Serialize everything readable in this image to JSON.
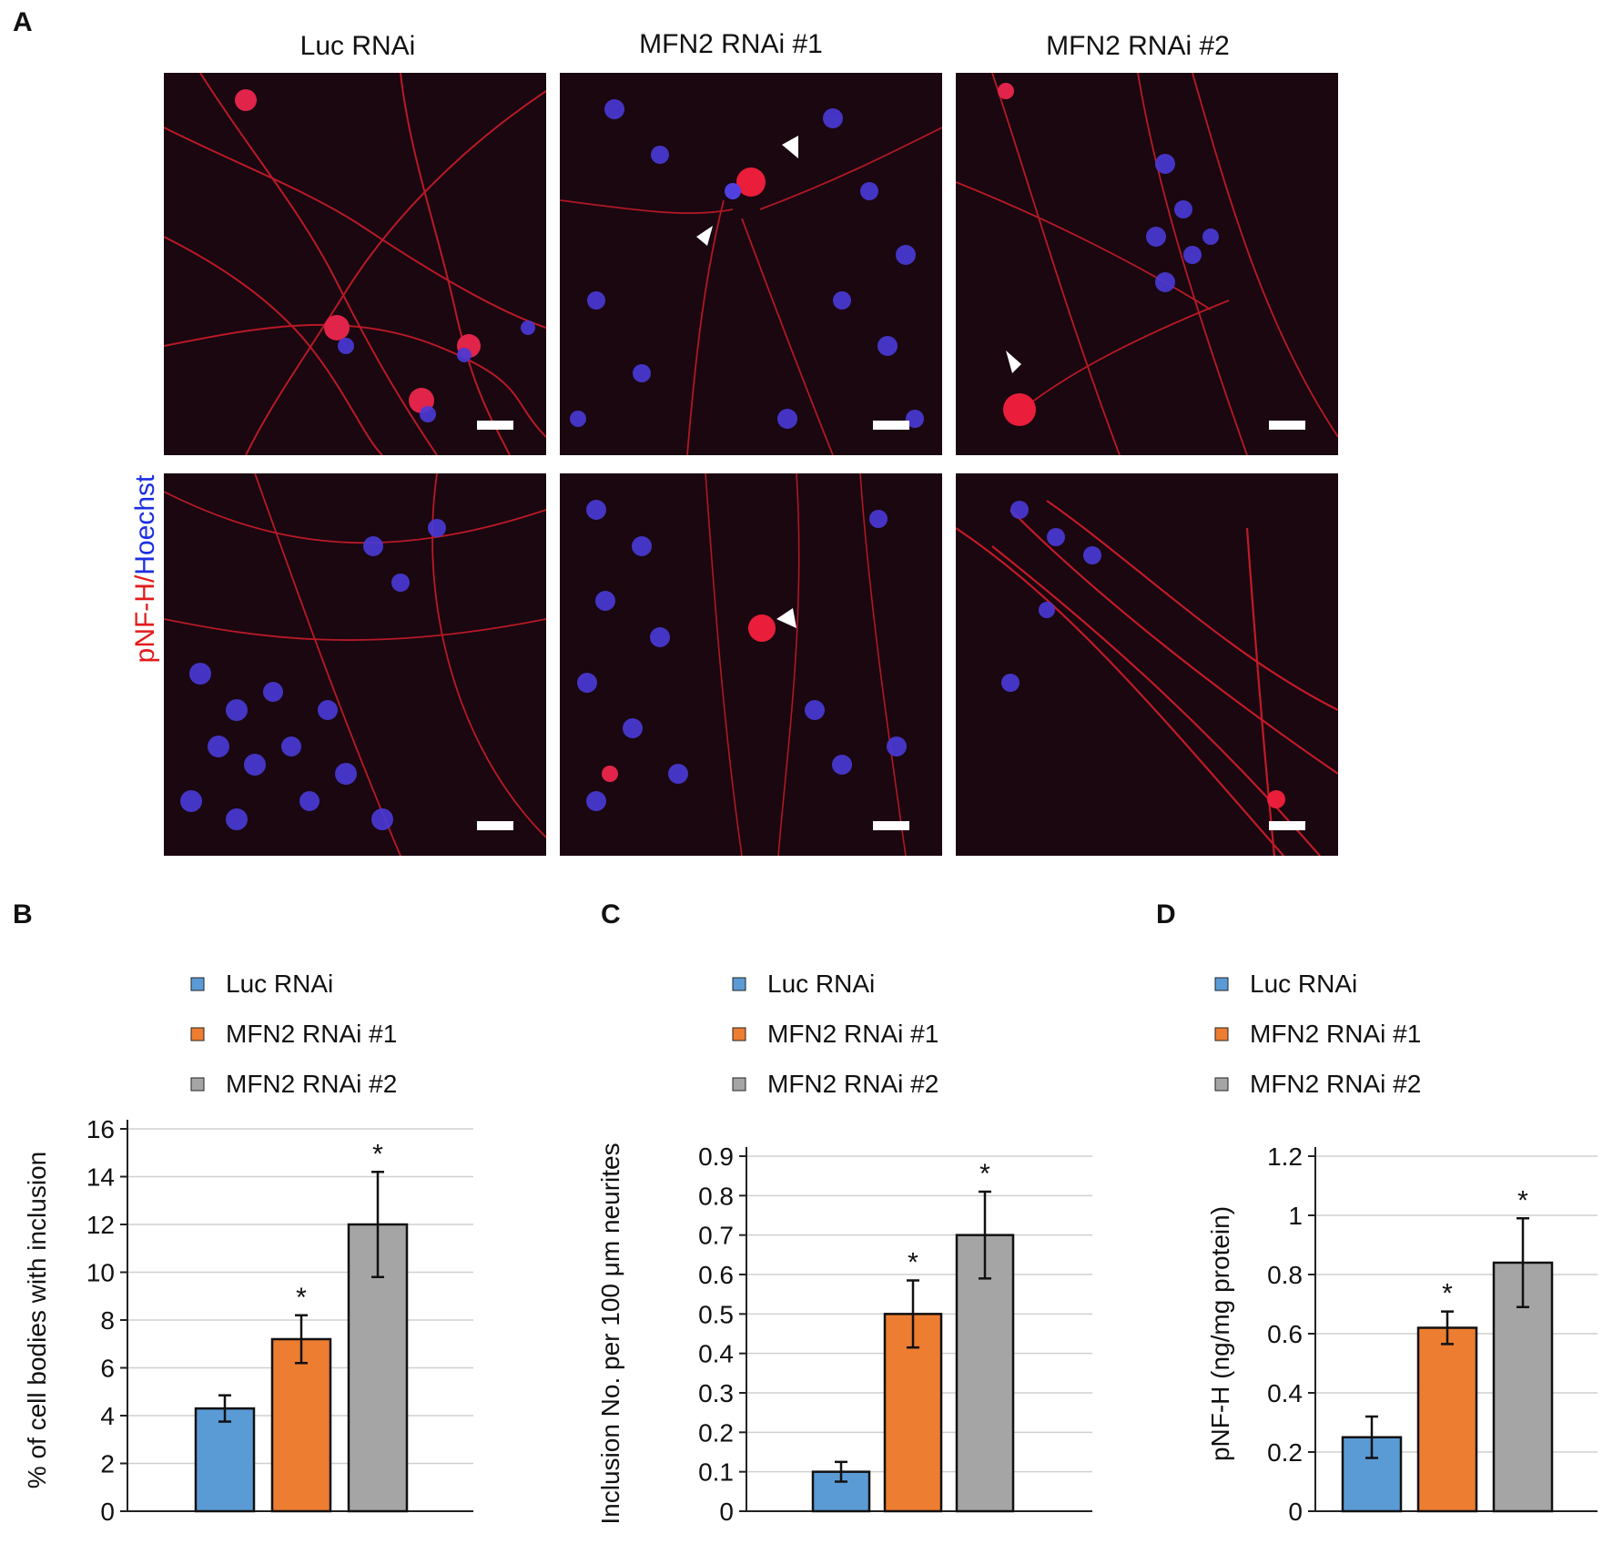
{
  "panels": {
    "A": "A",
    "B": "B",
    "C": "C",
    "D": "D"
  },
  "panel_a": {
    "columns": [
      "Luc RNAi",
      "MFN2 RNAi #1",
      "MFN2 RNAi #2"
    ],
    "stain_label_red": "pNF-H/",
    "stain_label_blue": "Hoechst",
    "colors": {
      "red": "#e21b1b",
      "blue": "#3a3aff",
      "background": "#1a0710"
    }
  },
  "chart_data": [
    {
      "type": "bar",
      "panel": "B",
      "categories": [
        "Luc RNAi",
        "MFN2 RNAi #1",
        "MFN2 RNAi #2"
      ],
      "values": [
        4.3,
        7.2,
        12.0
      ],
      "errors": [
        0.55,
        1.0,
        2.2
      ],
      "significance": [
        "",
        "*",
        "*"
      ],
      "colors": [
        "#5b9bd5",
        "#ed7d31",
        "#a5a5a5"
      ],
      "ylabel": "% of cell bodies with inclusion",
      "ylim": [
        0,
        16
      ],
      "yticks": [
        "0",
        "2",
        "4",
        "6",
        "8",
        "10",
        "12",
        "14",
        "16"
      ],
      "legend": [
        "Luc RNAi",
        "MFN2 RNAi #1",
        "MFN2 RNAi #2"
      ],
      "legend_position": "top",
      "grid": true
    },
    {
      "type": "bar",
      "panel": "C",
      "categories": [
        "Luc RNAi",
        "MFN2 RNAi #1",
        "MFN2 RNAi #2"
      ],
      "values": [
        0.1,
        0.5,
        0.7
      ],
      "errors": [
        0.025,
        0.085,
        0.11
      ],
      "significance": [
        "",
        "*",
        "*"
      ],
      "colors": [
        "#5b9bd5",
        "#ed7d31",
        "#a5a5a5"
      ],
      "ylabel": "Inclusion No. per 100 μm neurites",
      "ylim": [
        0,
        0.9
      ],
      "yticks": [
        "0",
        "0.1",
        "0.2",
        "0.3",
        "0.4",
        "0.5",
        "0.6",
        "0.7",
        "0.8",
        "0.9"
      ],
      "legend": [
        "Luc RNAi",
        "MFN2 RNAi #1",
        "MFN2 RNAi #2"
      ],
      "legend_position": "top",
      "grid": true
    },
    {
      "type": "bar",
      "panel": "D",
      "categories": [
        "Luc RNAi",
        "MFN2 RNAi #1",
        "MFN2 RNAi #2"
      ],
      "values": [
        0.25,
        0.62,
        0.84
      ],
      "errors": [
        0.07,
        0.055,
        0.15
      ],
      "significance": [
        "",
        "*",
        "*"
      ],
      "colors": [
        "#5b9bd5",
        "#ed7d31",
        "#a5a5a5"
      ],
      "ylabel": "pNF-H (ng/mg protein)",
      "ylim": [
        0,
        1.2
      ],
      "yticks": [
        "0",
        "0.2",
        "0.4",
        "0.6",
        "0.8",
        "1",
        "1.2"
      ],
      "legend": [
        "Luc RNAi",
        "MFN2 RNAi #1",
        "MFN2 RNAi #2"
      ],
      "legend_position": "top",
      "grid": true
    }
  ]
}
